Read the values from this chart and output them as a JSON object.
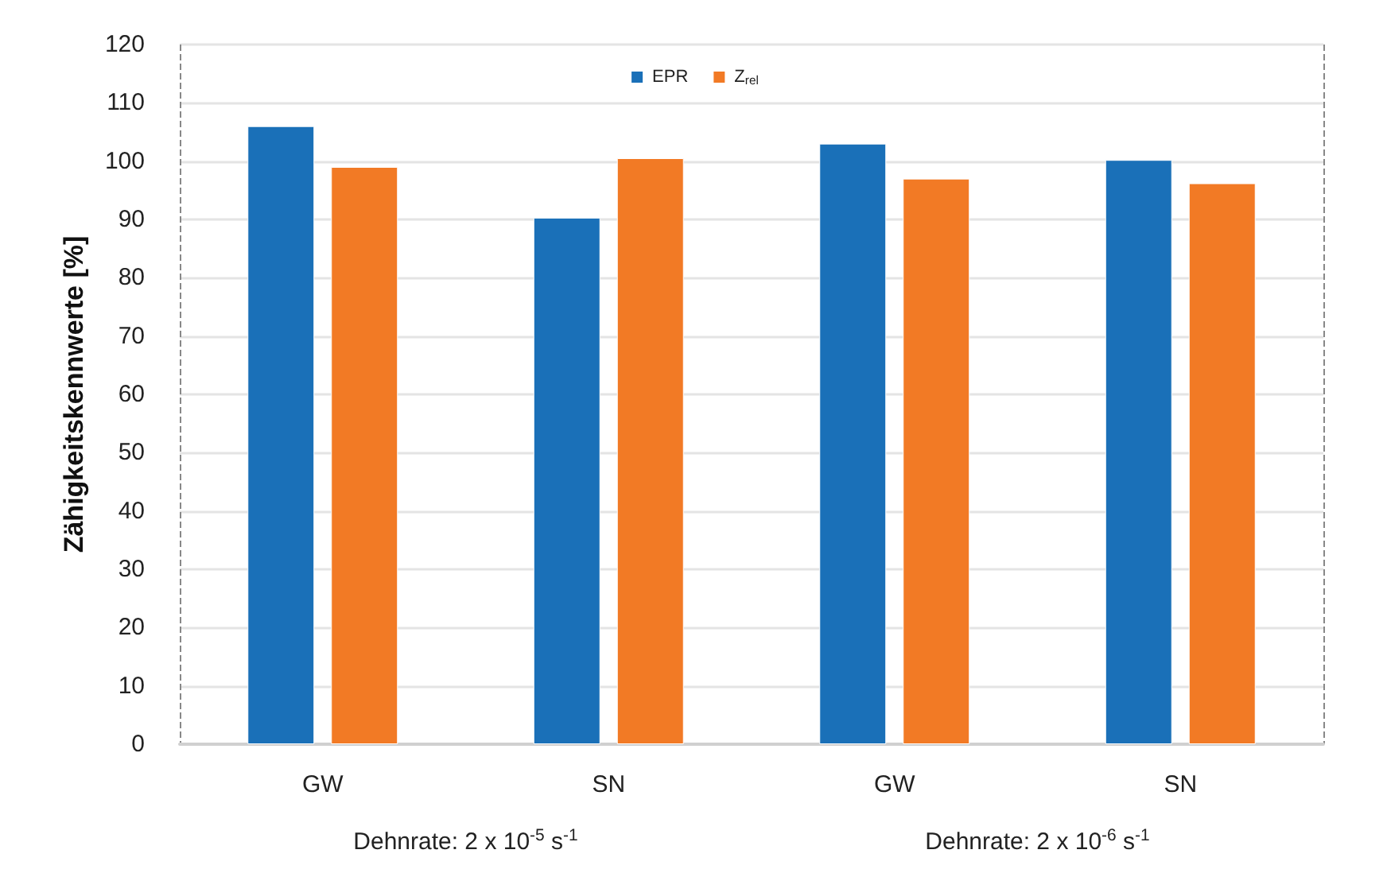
{
  "chart_data": {
    "type": "bar",
    "ylabel": "Zähigkeitskennwerte [%]",
    "categories": [
      "GW",
      "SN",
      "GW",
      "SN"
    ],
    "series": [
      {
        "name": "EPR",
        "color": "#1a70b8",
        "values": [
          106,
          90.3,
          103,
          100.2
        ]
      },
      {
        "name": "Z$_{rel}$",
        "color": "#f27a25",
        "values": [
          99,
          100.5,
          97,
          96.2
        ]
      }
    ],
    "ylim": [
      0,
      120
    ],
    "yticks": [
      0,
      10,
      20,
      30,
      40,
      50,
      60,
      70,
      80,
      90,
      100,
      110,
      120
    ],
    "grid": "y",
    "legend": "top",
    "annotations": [
      "Dehnrate: 2 x 10$^{-5}$ s$^{-1}$",
      "Dehnrate: 2 x 10$^{-6}$ s$^{-1}$"
    ]
  }
}
